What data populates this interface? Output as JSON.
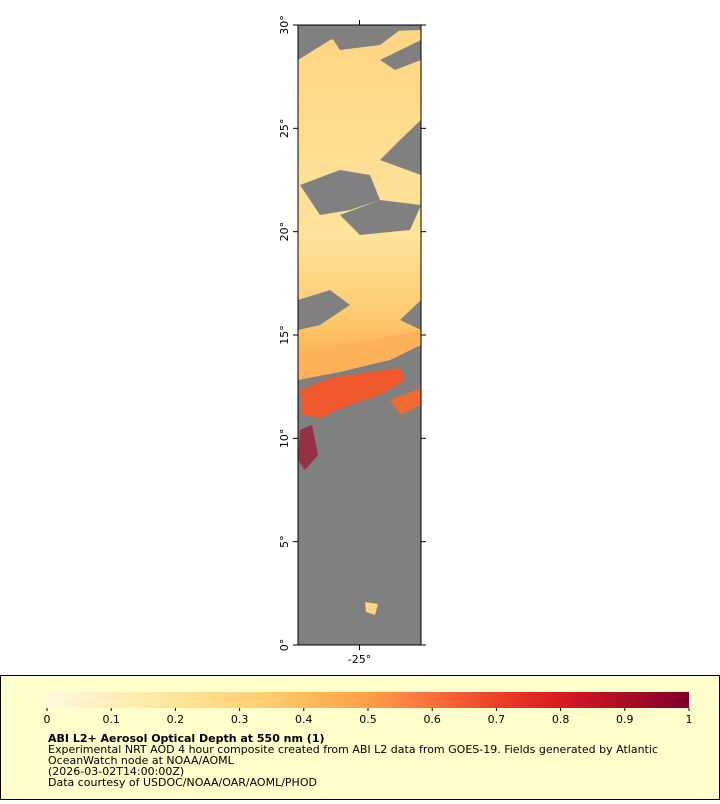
{
  "chart_data": {
    "type": "map",
    "ylim": [
      0,
      30
    ],
    "yticks": [
      {
        "value": 0,
        "label": "0°"
      },
      {
        "value": 5,
        "label": "5°"
      },
      {
        "value": 10,
        "label": "10°"
      },
      {
        "value": 15,
        "label": "15°"
      },
      {
        "value": 20,
        "label": "20°"
      },
      {
        "value": 25,
        "label": "25°"
      },
      {
        "value": 30,
        "label": "30°"
      }
    ],
    "xlim": [
      -28,
      -22
    ],
    "xticks": [
      {
        "value": -25,
        "label": "-25°"
      }
    ],
    "colorbar": {
      "lim": [
        0,
        1
      ],
      "ticks": [
        0,
        0.1,
        0.2,
        0.3,
        0.4,
        0.5,
        0.6,
        0.7,
        0.8,
        0.9,
        1
      ]
    },
    "title": "ABI L2+ Aerosol Optical Depth at 550 nm (1)",
    "description": [
      "Experimental NRT AOD 4 hour composite created from ABI L2 data from GOES-19. Fields generated by Atlantic",
      "OceanWatch node at NOAA/AOML",
      "(2026-03-02T14:00:00Z)",
      "Data courtesy of USDOC/NOAA/OAR/AOML/PHOD"
    ]
  }
}
